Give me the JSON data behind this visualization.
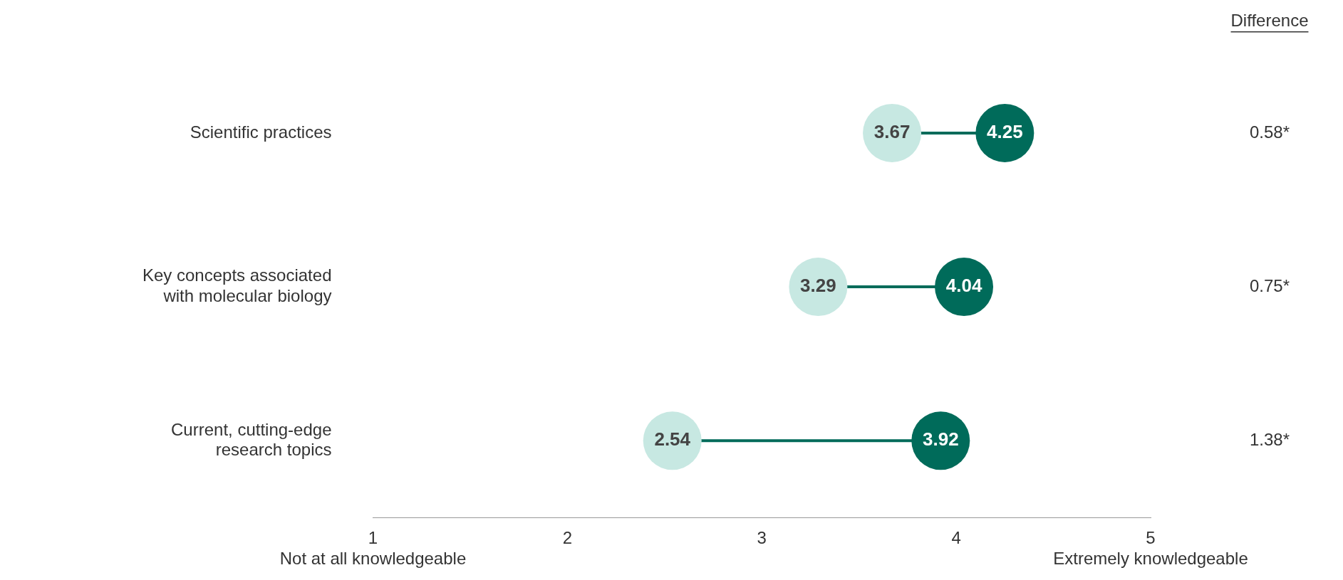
{
  "chart_data": {
    "type": "scatter",
    "orientation": "horizontal",
    "categories": [
      "Scientific practices",
      "Key concepts associated with molecular biology",
      "Current, cutting-edge research topics"
    ],
    "xlim": [
      1,
      5
    ],
    "xticks": [
      {
        "value": 1,
        "label": "1\nNot at all knowledgeable"
      },
      2,
      3,
      4,
      {
        "value": 5,
        "label": "5\nExtremely knowledgeable"
      }
    ],
    "grid": false,
    "legend": false,
    "marker": "circle",
    "data_labels": true,
    "annotations": [
      "Difference",
      "0.58*",
      "0.75*",
      "1.38*"
    ],
    "series": [
      {
        "color": "#c7e8e2",
        "values": [
          3.67,
          3.29,
          2.54
        ]
      },
      {
        "color": "#006b5a",
        "values": [
          4.25,
          4.04,
          3.92
        ]
      }
    ]
  }
}
